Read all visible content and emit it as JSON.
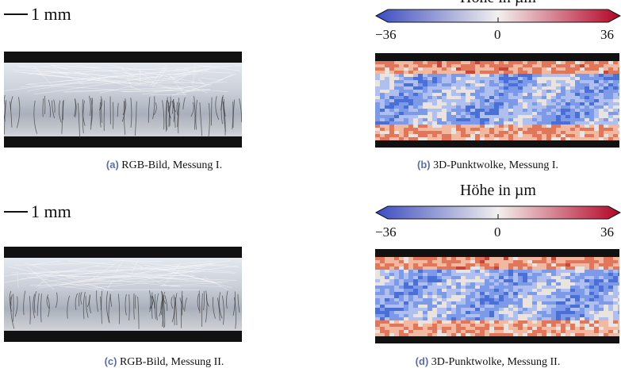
{
  "panels": [
    {
      "label": "(a)",
      "caption": "RGB-Bild, Messung I.",
      "scale_bar": "1 mm"
    },
    {
      "label": "(b)",
      "caption": "3D-Punktwolke, Messung I.",
      "colorbar": {
        "title": "Höhe in µm",
        "ticks": [
          "−36",
          "0",
          "36"
        ]
      }
    },
    {
      "label": "(c)",
      "caption": "RGB-Bild, Messung II.",
      "scale_bar": "1 mm"
    },
    {
      "label": "(d)",
      "caption": "3D-Punktwolke, Messung II.",
      "colorbar": {
        "title": "Höhe in µm",
        "ticks": [
          "−36",
          "0",
          "36"
        ]
      }
    }
  ]
}
